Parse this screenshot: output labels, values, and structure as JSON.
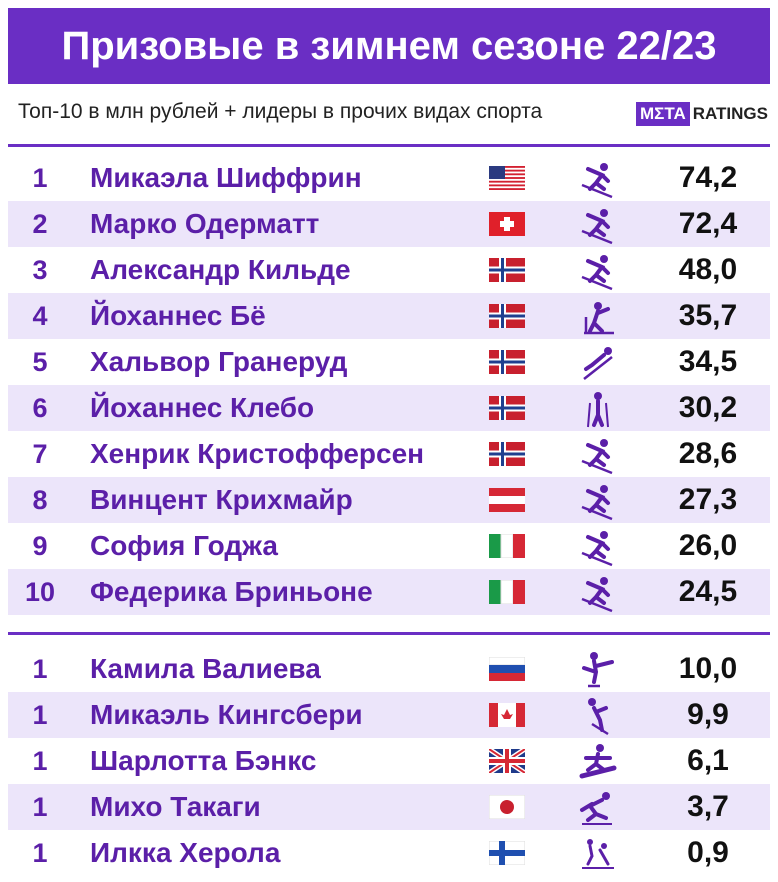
{
  "header": {
    "title": "Призовые в зимнем сезоне 22/23",
    "subtitle": "Топ-10 в млн рублей + лидеры в прочих видах спорта",
    "logo": {
      "mark": "MΣTA",
      "text": "RATINGS"
    }
  },
  "top10": {
    "rows": [
      {
        "rank": 1,
        "name": "Микаэла Шиффрин",
        "value": "74,2"
      },
      {
        "rank": 2,
        "name": "Марко Одерматт",
        "value": "72,4"
      },
      {
        "rank": 3,
        "name": "Александр Кильде",
        "value": "48,0"
      },
      {
        "rank": 4,
        "name": "Йоханнес Бё",
        "value": "35,7"
      },
      {
        "rank": 5,
        "name": "Хальвор Гранеруд",
        "value": "34,5"
      },
      {
        "rank": 6,
        "name": "Йоханнес Клебо",
        "value": "30,2"
      },
      {
        "rank": 7,
        "name": "Хенрик Кристофферсен",
        "value": "28,6"
      },
      {
        "rank": 8,
        "name": "Винцент Крихмайр",
        "value": "27,3"
      },
      {
        "rank": 9,
        "name": "София Годжа",
        "value": "26,0"
      },
      {
        "rank": 10,
        "name": "Федерика Бриньоне",
        "value": "24,5"
      }
    ]
  },
  "leaders": {
    "rows": [
      {
        "rank": 1,
        "name": "Камила Валиева",
        "value": "10,0"
      },
      {
        "rank": 1,
        "name": "Микаэль Кингсбери",
        "value": "9,9"
      },
      {
        "rank": 1,
        "name": "Шарлотта Бэнкс",
        "value": "6,1"
      },
      {
        "rank": 1,
        "name": "Михо Такаги",
        "value": "3,7"
      },
      {
        "rank": 1,
        "name": "Илкка Херола",
        "value": "0,9"
      }
    ]
  }
}
